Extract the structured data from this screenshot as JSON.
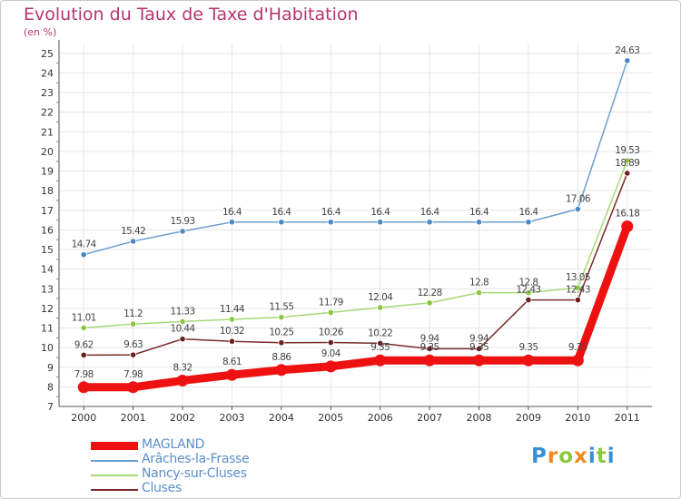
{
  "title": "Evolution du Taux de Taxe d'Habitation",
  "subtitle": "(en %)",
  "logo": {
    "letters": [
      "P",
      "r",
      "o",
      "x",
      "i",
      "t",
      "i"
    ],
    "colors": [
      "#3a8fd6",
      "#f28a1e",
      "#8cc63f",
      "#f28a1e",
      "#3a8fd6",
      "#8cc63f",
      "#3a8fd6"
    ]
  },
  "chart_data": {
    "type": "line",
    "x": [
      "2000",
      "2001",
      "2002",
      "2003",
      "2004",
      "2005",
      "2006",
      "2007",
      "2008",
      "2009",
      "2010",
      "2011"
    ],
    "ylim": [
      7,
      25.5
    ],
    "yticks": [
      7,
      8,
      9,
      10,
      11,
      12,
      13,
      14,
      15,
      16,
      17,
      18,
      19,
      20,
      21,
      22,
      23,
      24,
      25
    ],
    "grid": true,
    "legend_position": "bottom-left",
    "series": [
      {
        "name": "Arâches-la-Frasse",
        "color": "#6a9fd0",
        "marker": "#4a8ac4",
        "emphasis": false,
        "values": [
          14.74,
          15.42,
          15.93,
          16.4,
          16.4,
          16.4,
          16.4,
          16.4,
          16.4,
          16.4,
          17.06,
          24.63
        ],
        "labels": [
          "14.74",
          "15.42",
          "15.93",
          "16.4",
          "16.4",
          "16.4",
          "16.4",
          "16.4",
          "16.4",
          "16.4",
          "17.06",
          "24.63"
        ]
      },
      {
        "name": "Nancy-sur-Cluses",
        "color": "#a8d874",
        "marker": "#8cc63f",
        "emphasis": false,
        "values": [
          11.01,
          11.2,
          11.33,
          11.44,
          11.55,
          11.79,
          12.04,
          12.28,
          12.8,
          12.8,
          13.05,
          19.53
        ],
        "labels": [
          "11.01",
          "11.2",
          "11.33",
          "11.44",
          "11.55",
          "11.79",
          "12.04",
          "12.28",
          "12.8",
          "12.8",
          "13.05",
          "19.53"
        ]
      },
      {
        "name": "Cluses",
        "color": "#7a2b2b",
        "marker": "#6b1f1f",
        "emphasis": false,
        "values": [
          9.62,
          9.63,
          10.44,
          10.32,
          10.25,
          10.26,
          10.22,
          9.94,
          9.94,
          12.43,
          12.43,
          18.89
        ],
        "labels": [
          "9.62",
          "9.63",
          "10.44",
          "10.32",
          "10.25",
          "10.26",
          "10.22",
          "9.94",
          "9.94",
          "12.43",
          "12.43",
          "18.89"
        ]
      },
      {
        "name": "MAGLAND",
        "color": "#ee1111",
        "marker": "#ee1111",
        "emphasis": true,
        "values": [
          7.98,
          7.98,
          8.32,
          8.61,
          8.86,
          9.04,
          9.35,
          9.35,
          9.35,
          9.35,
          9.35,
          16.18
        ],
        "labels": [
          "7.98",
          "7.98",
          "8.32",
          "8.61",
          "8.86",
          "9.04",
          "9.35",
          "9.35",
          "9.35",
          "9.35",
          "9.35",
          "16.18"
        ]
      }
    ],
    "legend": [
      {
        "name": "MAGLAND",
        "color": "#ee1111",
        "thickness": 9
      },
      {
        "name": "Arâches-la-Frasse",
        "color": "#6a9fd0",
        "thickness": 2
      },
      {
        "name": "Nancy-sur-Cluses",
        "color": "#a8d874",
        "thickness": 2
      },
      {
        "name": "Cluses",
        "color": "#7a2b2b",
        "thickness": 2
      }
    ]
  }
}
